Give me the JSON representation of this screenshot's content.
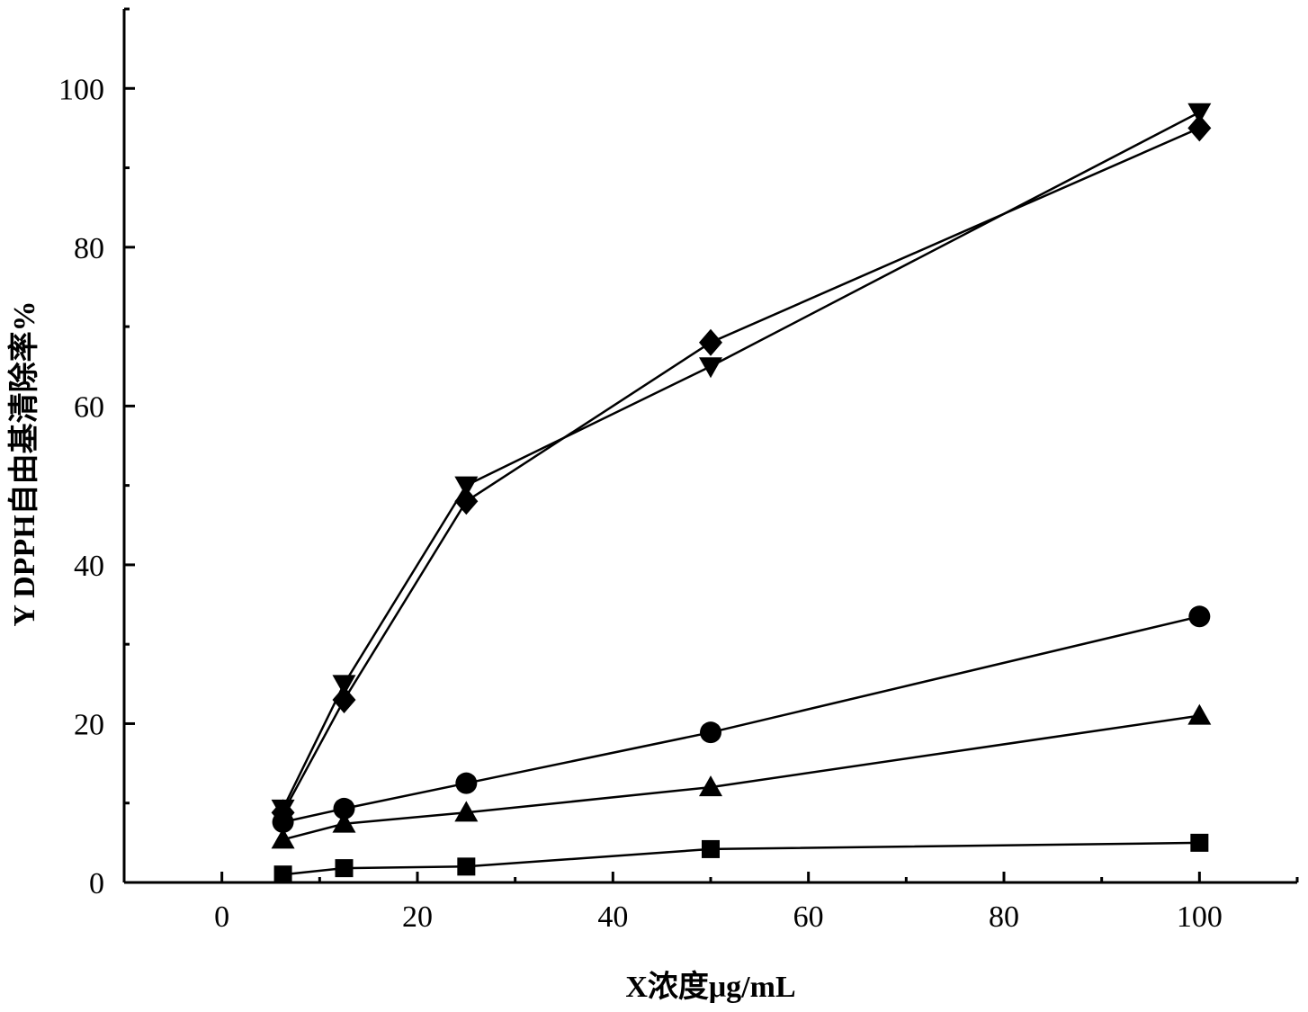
{
  "chart_data": {
    "type": "line",
    "xlabel": "X浓度μg/mL",
    "ylabel": "Y DPPH自由基清除率%",
    "xlim": [
      -10,
      110
    ],
    "ylim": [
      0,
      110
    ],
    "xticks": [
      0,
      20,
      40,
      60,
      80,
      100
    ],
    "yticks": [
      0,
      20,
      40,
      60,
      80,
      100
    ],
    "grid": false,
    "x": [
      6.25,
      12.5,
      25,
      50,
      100
    ],
    "series": [
      {
        "marker": "square",
        "values": [
          1.0,
          1.8,
          2.0,
          4.2,
          5.0
        ]
      },
      {
        "marker": "circle",
        "values": [
          7.6,
          9.3,
          12.5,
          18.9,
          33.5
        ]
      },
      {
        "marker": "triangle-up",
        "values": [
          5.4,
          7.4,
          8.8,
          12.0,
          21.0
        ]
      },
      {
        "marker": "triangle-down",
        "values": [
          9.3,
          25.0,
          50.0,
          65.0,
          97.0
        ]
      },
      {
        "marker": "diamond",
        "values": [
          8.8,
          23.0,
          48.0,
          68.0,
          95.0
        ]
      }
    ]
  }
}
